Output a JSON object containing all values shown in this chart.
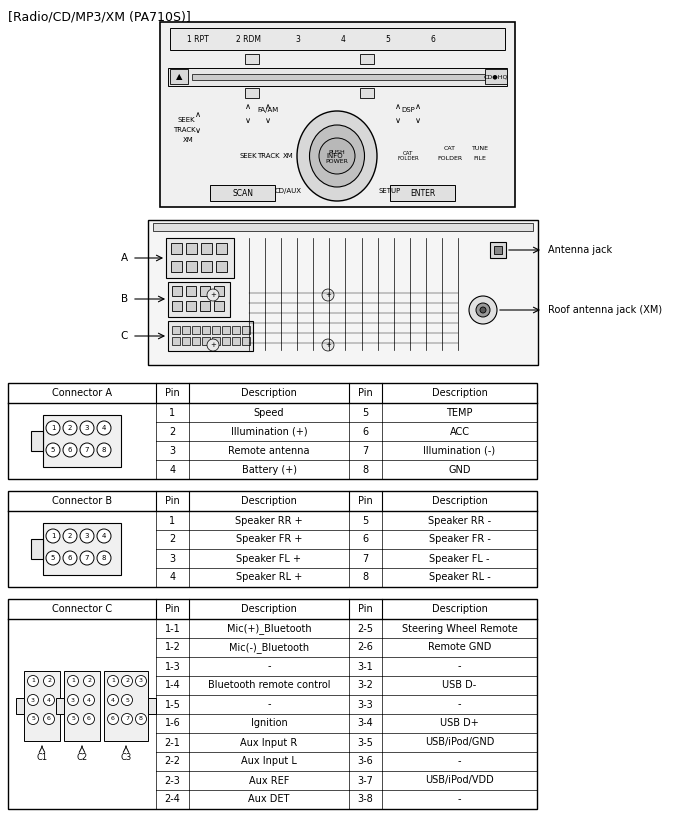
{
  "title": "[Radio/CD/MP3/XM (PA710S)]",
  "connector_a": {
    "header": [
      "Connector A",
      "Pin",
      "Description",
      "Pin",
      "Description"
    ],
    "rows": [
      [
        "1",
        "Speed",
        "5",
        "TEMP"
      ],
      [
        "2",
        "Illumination (+)",
        "6",
        "ACC"
      ],
      [
        "3",
        "Remote antenna",
        "7",
        "Illumination (-)"
      ],
      [
        "4",
        "Battery (+)",
        "8",
        "GND"
      ]
    ]
  },
  "connector_b": {
    "header": [
      "Connector B",
      "Pin",
      "Description",
      "Pin",
      "Description"
    ],
    "rows": [
      [
        "1",
        "Speaker RR +",
        "5",
        "Speaker RR -"
      ],
      [
        "2",
        "Speaker FR +",
        "6",
        "Speaker FR -"
      ],
      [
        "3",
        "Speaker FL +",
        "7",
        "Speaker FL -"
      ],
      [
        "4",
        "Speaker RL +",
        "8",
        "Speaker RL -"
      ]
    ]
  },
  "connector_c": {
    "header": [
      "Connector C",
      "Pin",
      "Description",
      "Pin",
      "Description"
    ],
    "rows": [
      [
        "1-1",
        "Mic(+)_Bluetooth",
        "2-5",
        "Steering Wheel Remote"
      ],
      [
        "1-2",
        "Mic(-)_Bluetooth",
        "2-6",
        "Remote GND"
      ],
      [
        "1-3",
        "-",
        "3-1",
        "-"
      ],
      [
        "1-4",
        "Bluetooth remote control",
        "3-2",
        "USB D-"
      ],
      [
        "1-5",
        "-",
        "3-3",
        "-"
      ],
      [
        "1-6",
        "Ignition",
        "3-4",
        "USB D+"
      ],
      [
        "2-1",
        "Aux Input R",
        "3-5",
        "USB/iPod/GND"
      ],
      [
        "2-2",
        "Aux Input L",
        "3-6",
        "-"
      ],
      [
        "2-3",
        "Aux REF",
        "3-7",
        "USB/iPod/VDD"
      ],
      [
        "2-4",
        "Aux DET",
        "3-8",
        "-"
      ]
    ]
  },
  "antenna_label": "Antenna jack",
  "roof_antenna_label": "Roof antenna jack (XM)",
  "bg_color": "#ffffff",
  "line_color": "#000000",
  "text_color": "#000000"
}
